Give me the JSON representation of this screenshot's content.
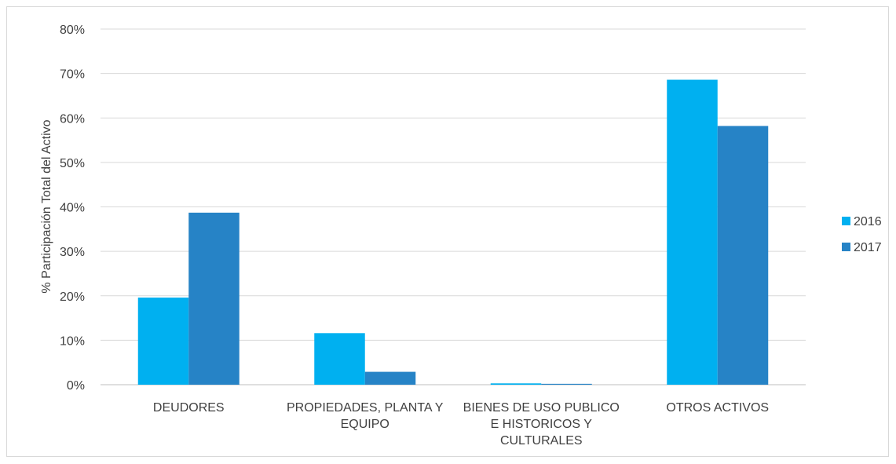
{
  "chart_data": {
    "type": "bar",
    "title": "",
    "xlabel": "",
    "ylabel": "% Participación Total del Activo",
    "ylim": [
      0,
      80
    ],
    "yticks": [
      "0%",
      "10%",
      "20%",
      "30%",
      "40%",
      "50%",
      "60%",
      "70%",
      "80%"
    ],
    "grid": true,
    "legend_position": "right",
    "categories": [
      [
        "DEUDORES"
      ],
      [
        "PROPIEDADES, PLANTA Y",
        "EQUIPO"
      ],
      [
        "BIENES DE USO PUBLICO",
        "E HISTORICOS Y",
        "CULTURALES"
      ],
      [
        "OTROS ACTIVOS"
      ]
    ],
    "series": [
      {
        "name": "2016",
        "color": "#00b0f0",
        "values": [
          19.6,
          11.6,
          0.3,
          68.6
        ]
      },
      {
        "name": "2017",
        "color": "#2683c6",
        "values": [
          38.7,
          2.9,
          0.2,
          58.2
        ]
      }
    ]
  }
}
